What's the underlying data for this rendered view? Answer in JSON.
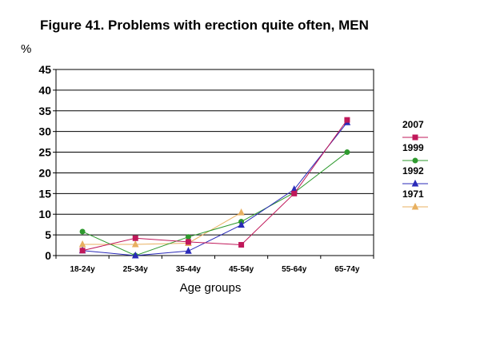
{
  "chart_data": {
    "type": "line",
    "title": "Figure 41. Problems with erection quite often, MEN",
    "ylabel": "%",
    "xlabel": "Age groups",
    "categories": [
      "18-24y",
      "25-34y",
      "35-44y",
      "45-54y",
      "55-64y",
      "65-74y"
    ],
    "ylim": [
      0,
      45
    ],
    "yticks": [
      0,
      5,
      10,
      15,
      20,
      25,
      30,
      35,
      40,
      45
    ],
    "grid": true,
    "legend": "right",
    "series": [
      {
        "name": "2007",
        "color": "#c0185a",
        "marker": "square",
        "values": [
          1.2,
          4.2,
          3.3,
          2.6,
          15.0,
          32.8
        ]
      },
      {
        "name": "1999",
        "color": "#2e9a2e",
        "marker": "circle",
        "values": [
          5.8,
          0.0,
          4.5,
          8.2,
          15.2,
          25.0
        ]
      },
      {
        "name": "1992",
        "color": "#2a2ab8",
        "marker": "triangle",
        "values": [
          1.2,
          0.0,
          1.1,
          7.4,
          16.0,
          32.2
        ]
      },
      {
        "name": "1971",
        "color": "#e8b060",
        "marker": "triangle",
        "values": [
          2.7,
          2.7,
          3.0,
          10.4,
          null,
          null
        ]
      }
    ]
  }
}
